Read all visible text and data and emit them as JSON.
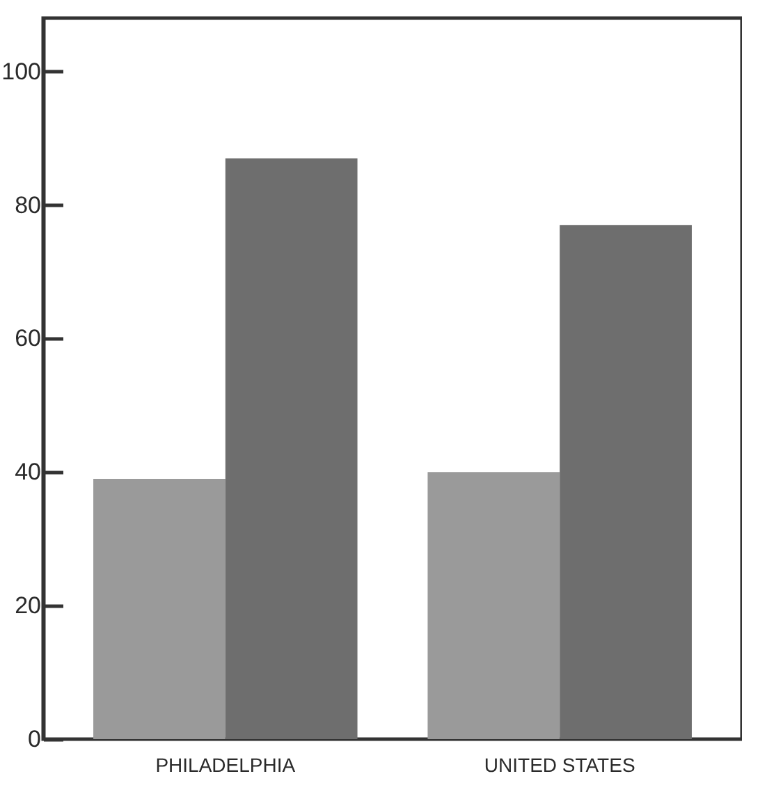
{
  "chart_data": {
    "type": "bar",
    "categories": [
      "PHILADELPHIA",
      "UNITED STATES"
    ],
    "series": [
      {
        "color": "#9a9a9a",
        "values": [
          39,
          40
        ]
      },
      {
        "color": "#6e6e6e",
        "values": [
          87,
          77
        ]
      }
    ],
    "ylim": [
      0,
      108
    ],
    "yticks": [
      0,
      20,
      40,
      60,
      80,
      100
    ],
    "grid": false
  }
}
